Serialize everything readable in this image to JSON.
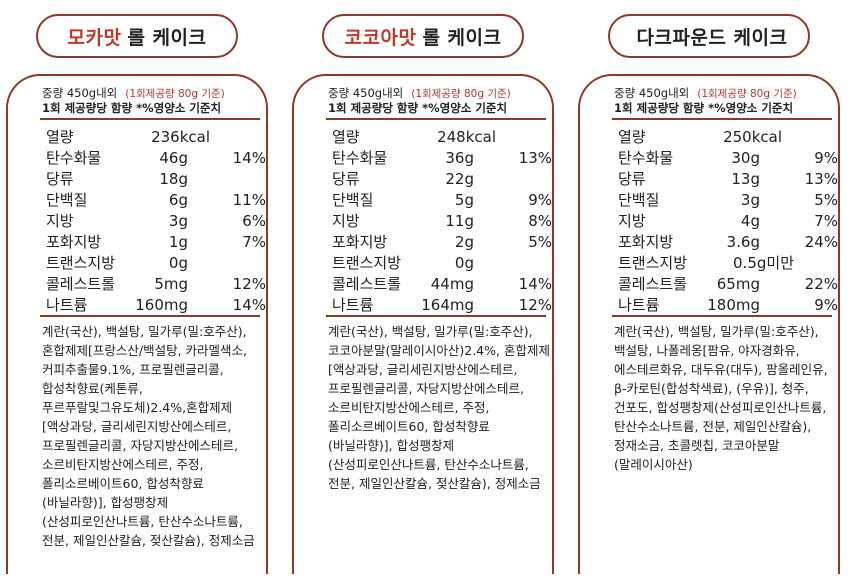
{
  "cards": [
    {
      "title_highlight": "모카맛",
      "title_rest": "롤 케이크",
      "weight": "중량 450g내외",
      "serving": "(1회제공량 80g 기준)",
      "basis": "1회 제공량당 함량 *%영양소 기준치",
      "nutrients": [
        {
          "name": "열량",
          "amount": "236kcal",
          "pct": ""
        },
        {
          "name": "탄수화물",
          "amount": "46g",
          "pct": "14%"
        },
        {
          "name": "당류",
          "amount": "18g",
          "pct": ""
        },
        {
          "name": "단백질",
          "amount": "6g",
          "pct": "11%"
        },
        {
          "name": "지방",
          "amount": "3g",
          "pct": "6%"
        },
        {
          "name": "포화지방",
          "amount": "1g",
          "pct": "7%"
        },
        {
          "name": "트랜스지방",
          "amount": "0g",
          "pct": ""
        },
        {
          "name": "콜레스트롤",
          "amount": "5mg",
          "pct": "12%"
        },
        {
          "name": "나트륨",
          "amount": "160mg",
          "pct": "14%"
        }
      ],
      "ingredients": "계란(국산), 백설탕, 밀가루(밀:호주산), 혼합제제[프랑스산/백설탕, 카라멜색소, 커피추출물9.1%, 프로필렌글리콜, 합성착향료(케톤류, 푸르푸랄및그유도체)2.4%,혼합제제[액상과당, 글리세린지방산에스테르, 프로필렌글리콜, 자당지방산에스테르, 소르비탄지방산에스테르, 주정, 폴리소르베이트60, 합성착향료(바닐라향)], 합성팽창제(산성피로인산나트륨, 탄산수소나트륨, 전분, 제일인산칼슘, 젖산칼슘), 정제소금"
    },
    {
      "title_highlight": "코코아맛",
      "title_rest": "롤 케이크",
      "weight": "중량 450g내외",
      "serving": "(1회제공량 80g 기준)",
      "basis": "1회 제공량당 함량 *%영양소 기준치",
      "nutrients": [
        {
          "name": "열량",
          "amount": "248kcal",
          "pct": ""
        },
        {
          "name": "탄수화물",
          "amount": "36g",
          "pct": "13%"
        },
        {
          "name": "당류",
          "amount": "22g",
          "pct": ""
        },
        {
          "name": "단백질",
          "amount": "5g",
          "pct": "9%"
        },
        {
          "name": "지방",
          "amount": "11g",
          "pct": "8%"
        },
        {
          "name": "포화지방",
          "amount": "2g",
          "pct": "5%"
        },
        {
          "name": "트랜스지방",
          "amount": "0g",
          "pct": ""
        },
        {
          "name": "콜레스트롤",
          "amount": "44mg",
          "pct": "14%"
        },
        {
          "name": "나트륨",
          "amount": "164mg",
          "pct": "12%"
        }
      ],
      "ingredients": "계란(국산), 백설탕, 밀가루(밀:호주산), 코코아분말(말레이시아산)2.4%, 혼합제제[액상과당, 글리세린지방산에스테르, 프로필렌글리콜, 자당지방산에스테르, 소르비탄지방산에스테르, 주정, 폴리소르베이트60, 합성착향료(바닐라향)], 합성팽창제(산성피로인산나트륨, 탄산수소나트륨, 전분, 제일인산칼슘, 젖산칼슘), 정제소금"
    },
    {
      "title_highlight": "",
      "title_rest": "다크파운드 케이크",
      "weight": "중량 450g내외",
      "serving": "(1회제공량 80g 기준)",
      "basis": "1회 제공량당 함량 *%영양소 기준치",
      "nutrients": [
        {
          "name": "열량",
          "amount": "250kcal",
          "pct": ""
        },
        {
          "name": "탄수화물",
          "amount": "30g",
          "pct": "9%"
        },
        {
          "name": "당류",
          "amount": "13g",
          "pct": "13%"
        },
        {
          "name": "단백질",
          "amount": "3g",
          "pct": "5%"
        },
        {
          "name": "지방",
          "amount": "4g",
          "pct": "7%"
        },
        {
          "name": "포화지방",
          "amount": "3.6g",
          "pct": "24%"
        },
        {
          "name": "트랜스지방",
          "amount": "0.5g미만",
          "pct": ""
        },
        {
          "name": "콜레스트롤",
          "amount": "65mg",
          "pct": "22%"
        },
        {
          "name": "나트륨",
          "amount": "180mg",
          "pct": "9%"
        }
      ],
      "ingredients": "계란(국산), 백설탕, 밀가루(밀:호주산), 백설탕, 나폴레옹[팜유, 야자경화유, 에스테르화유, 대두유(대두), 팜올레인유, β-카로틴(합성착색료), (우유)], 청주, 건포도, 합성팽창제(산성피로인산나트륨, 탄산수소나트륨, 전분, 제일인산칼슘), 정재소금, 초콜렛칩, 코코아분말(말레이시아산)"
    }
  ]
}
